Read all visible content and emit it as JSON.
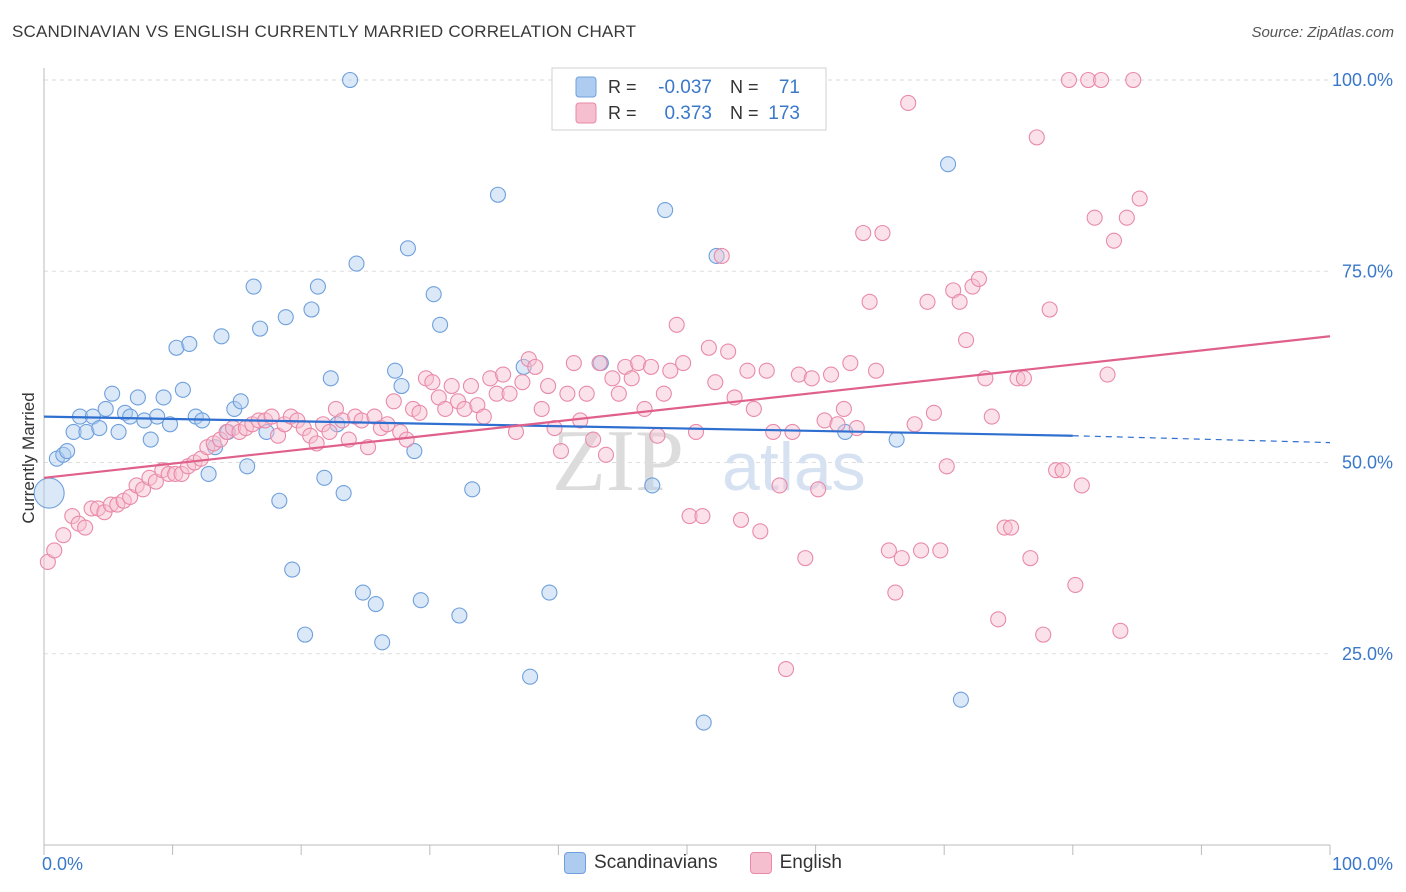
{
  "title": "SCANDINAVIAN VS ENGLISH CURRENTLY MARRIED CORRELATION CHART",
  "source": "Source: ZipAtlas.com",
  "watermark": {
    "zip": "ZIP",
    "atlas": "atlas"
  },
  "colors": {
    "blue": "#6fa0dc",
    "blue_fill": "#aecbf0",
    "blue_line": "#2f6fd0",
    "pink": "#e98aa8",
    "pink_fill": "#f6bfd0",
    "pink_line": "#e0608c",
    "axis_label": "#3a78c9",
    "grid": "#dddddd"
  },
  "legend": {
    "rows": [
      {
        "r_label": "R =",
        "r_value": "-0.037",
        "n_label": "N =",
        "n_value": "71"
      },
      {
        "r_label": "R =",
        "r_value": "0.373",
        "n_label": "N =",
        "n_value": "173"
      }
    ]
  },
  "bottom_legend": {
    "scandinavians": "Scandinavians",
    "english": "English"
  },
  "chart_data": {
    "type": "scatter",
    "title": "SCANDINAVIAN VS ENGLISH CURRENTLY MARRIED CORRELATION CHART",
    "xlabel": "",
    "ylabel": "Currently Married",
    "xlim": [
      0,
      100
    ],
    "ylim": [
      0,
      100
    ],
    "x_tick_labels": [
      "0.0%",
      "100.0%"
    ],
    "y_tick_values": [
      25,
      50,
      75,
      100
    ],
    "y_tick_labels": [
      "25.0%",
      "50.0%",
      "75.0%",
      "100.0%"
    ],
    "series": [
      {
        "name": "Scandinavians",
        "r": -0.037,
        "n": 71,
        "trend": {
          "x": [
            0,
            80
          ],
          "y": [
            56.0,
            53.5
          ],
          "dashed_to_x": 100,
          "dashed_end_y": 52.6
        },
        "points": [
          [
            0.4,
            46,
            2.0
          ],
          [
            1.0,
            50.5,
            1
          ],
          [
            1.5,
            51,
            1
          ],
          [
            1.8,
            51.5,
            1
          ],
          [
            2.3,
            54,
            1
          ],
          [
            2.8,
            56,
            1
          ],
          [
            3.3,
            54,
            1
          ],
          [
            3.8,
            56,
            1
          ],
          [
            4.3,
            54.5,
            1
          ],
          [
            4.8,
            57,
            1
          ],
          [
            5.3,
            59,
            1
          ],
          [
            5.8,
            54,
            1
          ],
          [
            6.3,
            56.5,
            1
          ],
          [
            6.7,
            56,
            1
          ],
          [
            7.3,
            58.5,
            1
          ],
          [
            7.8,
            55.5,
            1
          ],
          [
            8.3,
            53,
            1
          ],
          [
            8.8,
            56,
            1
          ],
          [
            9.3,
            58.5,
            1
          ],
          [
            9.8,
            55,
            1
          ],
          [
            10.3,
            65,
            1
          ],
          [
            10.8,
            59.5,
            1
          ],
          [
            11.3,
            65.5,
            1
          ],
          [
            11.8,
            56,
            1
          ],
          [
            12.3,
            55.5,
            1
          ],
          [
            12.8,
            48.5,
            1
          ],
          [
            13.3,
            52,
            1
          ],
          [
            13.8,
            66.5,
            1
          ],
          [
            14.3,
            54,
            1
          ],
          [
            14.8,
            57,
            1
          ],
          [
            15.3,
            58,
            1
          ],
          [
            15.8,
            49.5,
            1
          ],
          [
            16.3,
            73,
            1
          ],
          [
            16.8,
            67.5,
            1
          ],
          [
            17.3,
            54,
            1
          ],
          [
            18.3,
            45,
            1
          ],
          [
            18.8,
            69,
            1
          ],
          [
            19.3,
            36,
            1
          ],
          [
            20.3,
            27.5,
            1
          ],
          [
            20.8,
            70,
            1
          ],
          [
            21.3,
            73,
            1
          ],
          [
            21.8,
            48,
            1
          ],
          [
            22.3,
            61,
            1
          ],
          [
            22.8,
            55,
            1
          ],
          [
            23.3,
            46,
            1
          ],
          [
            23.8,
            100,
            1
          ],
          [
            24.3,
            76,
            1
          ],
          [
            24.8,
            33,
            1
          ],
          [
            25.8,
            31.5,
            1
          ],
          [
            26.3,
            26.5,
            1
          ],
          [
            27.3,
            62,
            1
          ],
          [
            27.8,
            60,
            1
          ],
          [
            28.3,
            78,
            1
          ],
          [
            28.8,
            51.5,
            1
          ],
          [
            29.3,
            32,
            1
          ],
          [
            30.3,
            72,
            1
          ],
          [
            30.8,
            68,
            1
          ],
          [
            32.3,
            30,
            1
          ],
          [
            33.3,
            46.5,
            1
          ],
          [
            35.3,
            85,
            1
          ],
          [
            37.3,
            62.5,
            1
          ],
          [
            37.8,
            22,
            1
          ],
          [
            39.3,
            33,
            1
          ],
          [
            43.3,
            63,
            1
          ],
          [
            47.3,
            47,
            1
          ],
          [
            48.3,
            83,
            1
          ],
          [
            51.3,
            16,
            1
          ],
          [
            52.3,
            77,
            1
          ],
          [
            62.3,
            54,
            1
          ],
          [
            66.3,
            53,
            1
          ],
          [
            70.3,
            89,
            1
          ],
          [
            71.3,
            19,
            1
          ]
        ]
      },
      {
        "name": "English",
        "r": 0.373,
        "n": 173,
        "trend": {
          "x": [
            0,
            100
          ],
          "y": [
            48.0,
            66.5
          ]
        },
        "points": [
          [
            0.3,
            37,
            1
          ],
          [
            0.8,
            38.5,
            1
          ],
          [
            1.5,
            40.5,
            1
          ],
          [
            2.2,
            43,
            1
          ],
          [
            2.7,
            42,
            1
          ],
          [
            3.2,
            41.5,
            1
          ],
          [
            3.7,
            44,
            1
          ],
          [
            4.2,
            44,
            1
          ],
          [
            4.7,
            43.5,
            1
          ],
          [
            5.2,
            44.5,
            1
          ],
          [
            5.7,
            44.5,
            1
          ],
          [
            6.2,
            45,
            1
          ],
          [
            6.7,
            45.5,
            1
          ],
          [
            7.2,
            47,
            1
          ],
          [
            7.7,
            46.5,
            1
          ],
          [
            8.2,
            48,
            1
          ],
          [
            8.7,
            47.5,
            1
          ],
          [
            9.2,
            49,
            1
          ],
          [
            9.7,
            48.5,
            1
          ],
          [
            10.2,
            48.5,
            1
          ],
          [
            10.7,
            48.5,
            1
          ],
          [
            11.2,
            49.5,
            1
          ],
          [
            11.7,
            50,
            1
          ],
          [
            12.2,
            50.5,
            1
          ],
          [
            12.7,
            52,
            1
          ],
          [
            13.2,
            52.5,
            1
          ],
          [
            13.7,
            53,
            1
          ],
          [
            14.2,
            54,
            1
          ],
          [
            14.7,
            54.5,
            1
          ],
          [
            15.2,
            54,
            1
          ],
          [
            15.7,
            54.5,
            1
          ],
          [
            16.2,
            55,
            1
          ],
          [
            16.7,
            55.5,
            1
          ],
          [
            17.2,
            55.5,
            1
          ],
          [
            17.7,
            56,
            1
          ],
          [
            18.2,
            53.5,
            1
          ],
          [
            18.7,
            55,
            1
          ],
          [
            19.2,
            56,
            1
          ],
          [
            19.7,
            55.5,
            1
          ],
          [
            20.2,
            54.5,
            1
          ],
          [
            20.7,
            53.5,
            1
          ],
          [
            21.2,
            52.5,
            1
          ],
          [
            21.7,
            55,
            1
          ],
          [
            22.2,
            54,
            1
          ],
          [
            22.7,
            57,
            1
          ],
          [
            23.2,
            55.5,
            1
          ],
          [
            23.7,
            53,
            1
          ],
          [
            24.2,
            56,
            1
          ],
          [
            24.7,
            55.5,
            1
          ],
          [
            25.2,
            52,
            1
          ],
          [
            25.7,
            56,
            1
          ],
          [
            26.2,
            54.5,
            1
          ],
          [
            26.7,
            55,
            1
          ],
          [
            27.2,
            58,
            1
          ],
          [
            27.7,
            54,
            1
          ],
          [
            28.2,
            53,
            1
          ],
          [
            28.7,
            57,
            1
          ],
          [
            29.2,
            56.5,
            1
          ],
          [
            29.7,
            61,
            1
          ],
          [
            30.2,
            60.5,
            1
          ],
          [
            30.7,
            58.5,
            1
          ],
          [
            31.2,
            57,
            1
          ],
          [
            31.7,
            60,
            1
          ],
          [
            32.2,
            58,
            1
          ],
          [
            32.7,
            57,
            1
          ],
          [
            33.2,
            60,
            1
          ],
          [
            33.7,
            57.5,
            1
          ],
          [
            34.2,
            56,
            1
          ],
          [
            34.7,
            61,
            1
          ],
          [
            35.2,
            59,
            1
          ],
          [
            35.7,
            61.5,
            1
          ],
          [
            36.2,
            59,
            1
          ],
          [
            36.7,
            54,
            1
          ],
          [
            37.2,
            60.5,
            1
          ],
          [
            37.7,
            63.5,
            1
          ],
          [
            38.2,
            62.5,
            1
          ],
          [
            38.7,
            57,
            1
          ],
          [
            39.2,
            60,
            1
          ],
          [
            39.7,
            54.5,
            1
          ],
          [
            40.2,
            51.5,
            1
          ],
          [
            40.7,
            59,
            1
          ],
          [
            41.2,
            63,
            1
          ],
          [
            41.7,
            55.5,
            1
          ],
          [
            42.2,
            59,
            1
          ],
          [
            42.7,
            53,
            1
          ],
          [
            43.2,
            63,
            1
          ],
          [
            43.7,
            51,
            1
          ],
          [
            44.2,
            61,
            1
          ],
          [
            44.7,
            59,
            1
          ],
          [
            45.2,
            62.5,
            1
          ],
          [
            45.7,
            61,
            1
          ],
          [
            46.2,
            63,
            1
          ],
          [
            46.7,
            57,
            1
          ],
          [
            47.2,
            62.5,
            1
          ],
          [
            47.7,
            53.5,
            1
          ],
          [
            48.2,
            59,
            1
          ],
          [
            48.7,
            62,
            1
          ],
          [
            49.2,
            68,
            1
          ],
          [
            49.7,
            63,
            1
          ],
          [
            50.2,
            43,
            1
          ],
          [
            50.7,
            54,
            1
          ],
          [
            51.2,
            43,
            1
          ],
          [
            51.7,
            65,
            1
          ],
          [
            52.2,
            60.5,
            1
          ],
          [
            52.7,
            77,
            1
          ],
          [
            53.2,
            64.5,
            1
          ],
          [
            53.7,
            58.5,
            1
          ],
          [
            54.2,
            42.5,
            1
          ],
          [
            54.7,
            62,
            1
          ],
          [
            55.2,
            57,
            1
          ],
          [
            55.7,
            41,
            1
          ],
          [
            56.2,
            62,
            1
          ],
          [
            56.7,
            54,
            1
          ],
          [
            57.2,
            47,
            1
          ],
          [
            57.7,
            23,
            1
          ],
          [
            58.2,
            54,
            1
          ],
          [
            58.7,
            61.5,
            1
          ],
          [
            59.2,
            37.5,
            1
          ],
          [
            59.7,
            61,
            1
          ],
          [
            60.2,
            46.5,
            1
          ],
          [
            60.7,
            55.5,
            1
          ],
          [
            61.2,
            61.5,
            1
          ],
          [
            61.7,
            55,
            1
          ],
          [
            62.2,
            57,
            1
          ],
          [
            62.7,
            63,
            1
          ],
          [
            63.2,
            54.5,
            1
          ],
          [
            63.7,
            80,
            1
          ],
          [
            64.2,
            71,
            1
          ],
          [
            64.7,
            62,
            1
          ],
          [
            65.2,
            80,
            1
          ],
          [
            65.7,
            38.5,
            1
          ],
          [
            66.2,
            33,
            1
          ],
          [
            66.7,
            37.5,
            1
          ],
          [
            67.2,
            97,
            1
          ],
          [
            67.7,
            55,
            1
          ],
          [
            68.2,
            38.5,
            1
          ],
          [
            68.7,
            71,
            1
          ],
          [
            69.2,
            56.5,
            1
          ],
          [
            69.7,
            38.5,
            1
          ],
          [
            70.2,
            49.5,
            1
          ],
          [
            70.7,
            72.5,
            1
          ],
          [
            71.2,
            71,
            1
          ],
          [
            71.7,
            66,
            1
          ],
          [
            72.2,
            73,
            1
          ],
          [
            72.7,
            74,
            1
          ],
          [
            73.2,
            61,
            1
          ],
          [
            73.7,
            56,
            1
          ],
          [
            74.2,
            29.5,
            1
          ],
          [
            74.7,
            41.5,
            1
          ],
          [
            75.2,
            41.5,
            1
          ],
          [
            75.7,
            61,
            1
          ],
          [
            76.2,
            61,
            1
          ],
          [
            76.7,
            37.5,
            1
          ],
          [
            77.2,
            92.5,
            1
          ],
          [
            77.7,
            27.5,
            1
          ],
          [
            78.2,
            70,
            1
          ],
          [
            78.7,
            49,
            1
          ],
          [
            79.2,
            49,
            1
          ],
          [
            79.7,
            100,
            1
          ],
          [
            80.2,
            34,
            1
          ],
          [
            80.7,
            47,
            1
          ],
          [
            81.2,
            100,
            1
          ],
          [
            81.7,
            82,
            1
          ],
          [
            82.2,
            100,
            1
          ],
          [
            82.7,
            61.5,
            1
          ],
          [
            83.2,
            79,
            1
          ],
          [
            83.7,
            28,
            1
          ],
          [
            84.2,
            82,
            1
          ],
          [
            84.7,
            100,
            1
          ],
          [
            85.2,
            84.5,
            1
          ]
        ]
      }
    ]
  }
}
